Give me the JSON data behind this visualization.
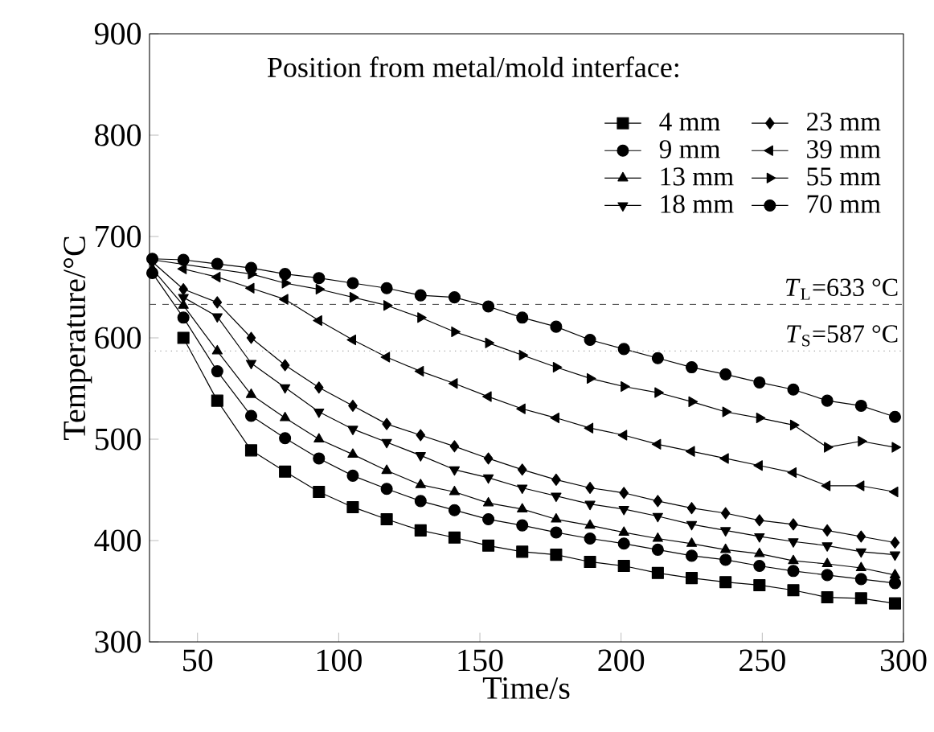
{
  "chart_data": {
    "type": "line",
    "xlabel": "Time/s",
    "ylabel": "Temperature/°C",
    "legend_title": "Position from metal/mold interface:",
    "x": [
      34,
      45,
      57,
      69,
      81,
      93,
      105,
      117,
      129,
      141,
      153,
      165,
      177,
      189,
      201,
      213,
      225,
      237,
      249,
      261,
      273,
      285,
      297
    ],
    "series": [
      {
        "name": "4 mm",
        "color": "#000000",
        "marker": "square",
        "values": [
          null,
          600,
          538,
          489,
          468,
          448,
          433,
          421,
          410,
          403,
          395,
          389,
          386,
          379,
          375,
          368,
          363,
          359,
          356,
          351,
          344,
          343,
          338
        ]
      },
      {
        "name": "9 mm",
        "color": "#000000",
        "marker": "circle",
        "values": [
          664,
          620,
          567,
          523,
          501,
          481,
          464,
          451,
          439,
          430,
          421,
          415,
          408,
          402,
          397,
          391,
          385,
          381,
          375,
          370,
          366,
          362,
          358
        ]
      },
      {
        "name": "13 mm",
        "color": "#000000",
        "marker": "triangle",
        "values": [
          668,
          632,
          587,
          544,
          521,
          500,
          485,
          469,
          455,
          448,
          437,
          431,
          421,
          415,
          408,
          402,
          397,
          391,
          387,
          380,
          377,
          373,
          366
        ]
      },
      {
        "name": "18 mm",
        "color": "#000000",
        "marker": "triangle-down",
        "values": [
          null,
          640,
          621,
          575,
          551,
          527,
          510,
          497,
          484,
          470,
          462,
          452,
          444,
          436,
          431,
          424,
          416,
          410,
          404,
          399,
          395,
          389,
          386
        ]
      },
      {
        "name": "23 mm",
        "color": "#000000",
        "marker": "diamond",
        "values": [
          675,
          648,
          635,
          600,
          573,
          551,
          533,
          515,
          504,
          493,
          481,
          470,
          460,
          452,
          447,
          439,
          432,
          427,
          420,
          416,
          410,
          404,
          398
        ]
      },
      {
        "name": "39 mm",
        "color": "#000000",
        "marker": "triangle-left",
        "values": [
          null,
          668,
          660,
          649,
          638,
          617,
          598,
          581,
          567,
          555,
          542,
          530,
          521,
          511,
          504,
          495,
          488,
          481,
          474,
          467,
          454,
          454,
          448
        ]
      },
      {
        "name": "55 mm",
        "color": "#000000",
        "marker": "triangle-right",
        "values": [
          677,
          null,
          null,
          663,
          654,
          648,
          640,
          632,
          620,
          606,
          595,
          583,
          571,
          560,
          552,
          546,
          537,
          527,
          521,
          514,
          492,
          498,
          492
        ]
      },
      {
        "name": "70 mm",
        "color": "#000000",
        "marker": "circle",
        "values": [
          678,
          677,
          673,
          669,
          663,
          659,
          654,
          649,
          642,
          640,
          631,
          620,
          611,
          598,
          589,
          580,
          571,
          564,
          556,
          549,
          538,
          533,
          522
        ]
      }
    ],
    "xlim": [
      33,
      300
    ],
    "ylim": [
      300,
      900
    ],
    "xticks": [
      50,
      100,
      150,
      200,
      250,
      300
    ],
    "yticks": [
      300,
      400,
      500,
      600,
      700,
      800,
      900
    ],
    "ref_lines": [
      {
        "axis": "y",
        "value": 633,
        "label": "*T*$_{L}$=633 °C",
        "color": "#555555",
        "line_style": "dashed"
      },
      {
        "axis": "y",
        "value": 587,
        "label": "*T*$_{S}$=587 °C",
        "color": "#aaaaaa",
        "line_style": "dotted"
      }
    ],
    "legend": "top right",
    "line_style": "solid"
  }
}
